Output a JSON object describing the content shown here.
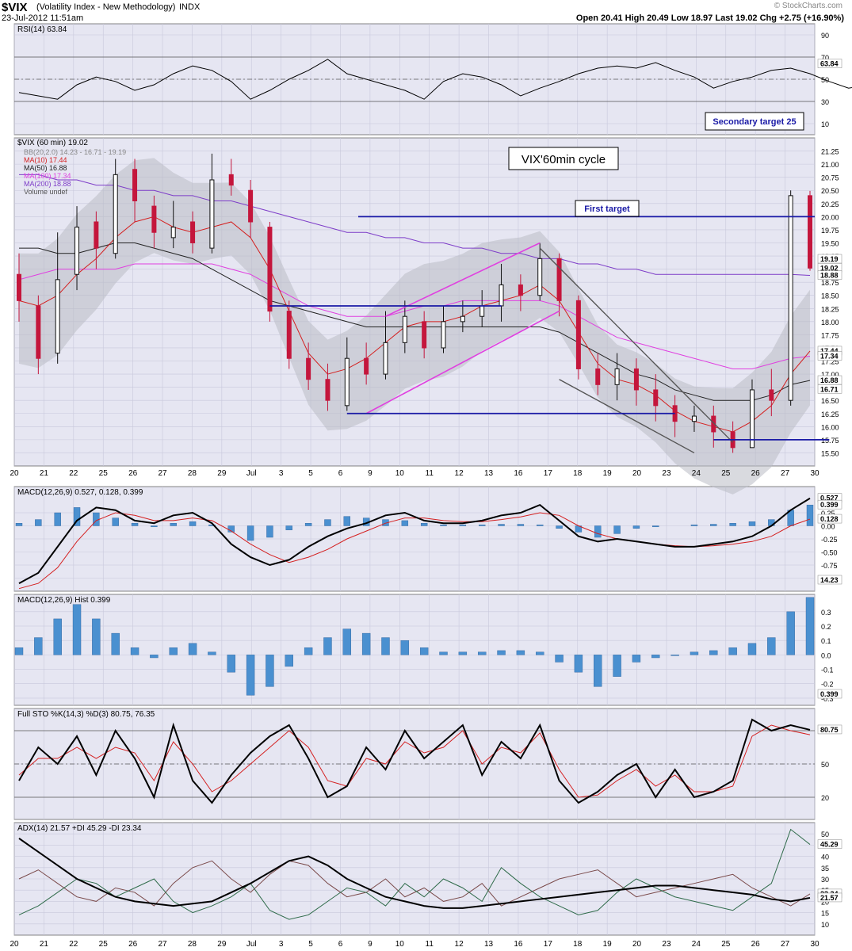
{
  "header": {
    "symbol": "$VIX",
    "name": "(Volatility Index - New Methodology)",
    "exchange": "INDX",
    "timestamp": "23-Jul-2012 11:51am",
    "quote": "Open 20.41  High 20.49  Low 18.97  Last 19.02  Chg +2.75 (+16.90%)",
    "watermark": "© StockCharts.com"
  },
  "chart_data": [
    {
      "type": "line",
      "title": "RSI(14) 63.84",
      "value": 63.84,
      "ylim": [
        0,
        100
      ],
      "yticks": [
        "90",
        "70",
        "50",
        "30",
        "10"
      ],
      "annotations": [
        "Secondary target 25"
      ],
      "series": [
        {
          "name": "RSI(14)",
          "values": [
            38,
            35,
            32,
            45,
            52,
            48,
            40,
            45,
            55,
            62,
            58,
            48,
            32,
            40,
            50,
            58,
            68,
            55,
            50,
            45,
            40,
            32,
            48,
            55,
            52,
            45,
            35,
            42,
            48,
            55,
            60,
            62,
            60,
            65,
            58,
            52,
            42,
            48,
            52,
            58,
            60,
            55,
            48,
            42,
            45,
            50,
            60,
            50,
            65,
            63.84
          ]
        }
      ]
    },
    {
      "type": "candlestick",
      "title": "$VIX (60 min) 19.02",
      "annotations": [
        "VIX'60min cycle",
        "First target"
      ],
      "legend": [
        "BB(20,2.0) 14.23 - 16.71 - 19.19",
        "MA(10) 17.44",
        "MA(50) 16.88",
        "MA(100) 17.34",
        "MA(200) 18.88",
        "Volume undef"
      ],
      "ylim": [
        15.25,
        21.5
      ],
      "yticks": [
        "21.25",
        "21.00",
        "20.75",
        "20.50",
        "20.25",
        "20.00",
        "19.75",
        "19.50",
        "19.25",
        "19.00",
        "18.75",
        "18.50",
        "18.25",
        "18.00",
        "17.75",
        "17.50",
        "17.25",
        "17.00",
        "16.75",
        "16.50",
        "16.25",
        "16.00",
        "15.75",
        "15.50"
      ],
      "xticks": [
        "20",
        "21",
        "22",
        "25",
        "26",
        "27",
        "28",
        "29",
        "Jul",
        "3",
        "5",
        "6",
        "9",
        "10",
        "11",
        "12",
        "13",
        "16",
        "17",
        "18",
        "19",
        "20",
        "23",
        "24",
        "25",
        "26",
        "27",
        "30"
      ],
      "price_labels": [
        "19.19",
        "19.02",
        "18.88",
        "17.44",
        "17.34",
        "16.88",
        "16.71"
      ],
      "candles": [
        {
          "o": 18.9,
          "c": 18.4,
          "h": 19.3,
          "l": 18.0
        },
        {
          "o": 18.3,
          "c": 17.3,
          "h": 18.5,
          "l": 17.0
        },
        {
          "o": 17.4,
          "c": 18.8,
          "h": 19.7,
          "l": 17.2
        },
        {
          "o": 18.9,
          "c": 19.8,
          "h": 20.2,
          "l": 18.6
        },
        {
          "o": 19.9,
          "c": 19.4,
          "h": 20.1,
          "l": 19.0
        },
        {
          "o": 19.3,
          "c": 20.8,
          "h": 21.1,
          "l": 19.2
        },
        {
          "o": 20.9,
          "c": 20.3,
          "h": 21.1,
          "l": 19.9
        },
        {
          "o": 20.2,
          "c": 19.7,
          "h": 20.4,
          "l": 19.4
        },
        {
          "o": 19.6,
          "c": 19.8,
          "h": 20.3,
          "l": 19.4
        },
        {
          "o": 19.9,
          "c": 19.5,
          "h": 20.1,
          "l": 19.3
        },
        {
          "o": 19.4,
          "c": 20.7,
          "h": 21.2,
          "l": 19.3
        },
        {
          "o": 20.8,
          "c": 20.6,
          "h": 21.1,
          "l": 20.4
        },
        {
          "o": 20.5,
          "c": 19.9,
          "h": 20.7,
          "l": 19.6
        },
        {
          "o": 19.8,
          "c": 18.2,
          "h": 19.9,
          "l": 18.0
        },
        {
          "o": 18.2,
          "c": 17.3,
          "h": 18.4,
          "l": 17.1
        },
        {
          "o": 17.3,
          "c": 16.9,
          "h": 17.6,
          "l": 16.7
        },
        {
          "o": 16.9,
          "c": 16.5,
          "h": 17.2,
          "l": 16.3
        },
        {
          "o": 16.4,
          "c": 17.3,
          "h": 17.7,
          "l": 16.3
        },
        {
          "o": 17.3,
          "c": 17.0,
          "h": 17.6,
          "l": 16.8
        },
        {
          "o": 17.0,
          "c": 17.6,
          "h": 18.2,
          "l": 16.9
        },
        {
          "o": 17.6,
          "c": 18.1,
          "h": 18.4,
          "l": 17.4
        },
        {
          "o": 18.0,
          "c": 17.5,
          "h": 18.2,
          "l": 17.3
        },
        {
          "o": 17.5,
          "c": 18.0,
          "h": 18.3,
          "l": 17.4
        },
        {
          "o": 18.0,
          "c": 18.1,
          "h": 18.4,
          "l": 17.8
        },
        {
          "o": 18.1,
          "c": 18.3,
          "h": 18.6,
          "l": 17.9
        },
        {
          "o": 18.3,
          "c": 18.7,
          "h": 19.1,
          "l": 18.0
        },
        {
          "o": 18.7,
          "c": 18.5,
          "h": 18.9,
          "l": 18.2
        },
        {
          "o": 18.5,
          "c": 19.2,
          "h": 19.5,
          "l": 18.4
        },
        {
          "o": 19.2,
          "c": 18.4,
          "h": 19.3,
          "l": 18.1
        },
        {
          "o": 18.4,
          "c": 17.1,
          "h": 18.5,
          "l": 16.9
        },
        {
          "o": 17.1,
          "c": 16.8,
          "h": 17.4,
          "l": 16.6
        },
        {
          "o": 16.8,
          "c": 17.1,
          "h": 17.4,
          "l": 16.5
        },
        {
          "o": 17.1,
          "c": 16.7,
          "h": 17.3,
          "l": 16.4
        },
        {
          "o": 16.7,
          "c": 16.4,
          "h": 17.0,
          "l": 16.1
        },
        {
          "o": 16.4,
          "c": 16.1,
          "h": 16.6,
          "l": 15.8
        },
        {
          "o": 16.1,
          "c": 16.2,
          "h": 16.4,
          "l": 15.9
        },
        {
          "o": 16.2,
          "c": 15.9,
          "h": 16.4,
          "l": 15.6
        },
        {
          "o": 15.9,
          "c": 15.6,
          "h": 16.1,
          "l": 15.5
        },
        {
          "o": 15.6,
          "c": 16.7,
          "h": 16.9,
          "l": 15.6
        },
        {
          "o": 16.7,
          "c": 16.5,
          "h": 17.1,
          "l": 16.2
        },
        {
          "o": 16.5,
          "c": 20.4,
          "h": 20.5,
          "l": 16.4
        },
        {
          "o": 20.4,
          "c": 19.02,
          "h": 20.49,
          "l": 18.97
        }
      ],
      "lines": [
        {
          "name": "MA(10)",
          "values": [
            18.4,
            18.3,
            18.5,
            18.9,
            19.2,
            19.6,
            19.9,
            20.0,
            19.8,
            19.7,
            19.8,
            19.9,
            19.6,
            19.0,
            18.2,
            17.4,
            17.0,
            17.1,
            17.3,
            17.6,
            17.9,
            18.0,
            18.0,
            18.1,
            18.3,
            18.4,
            18.5,
            18.7,
            18.4,
            17.8,
            17.2,
            16.9,
            16.8,
            16.6,
            16.3,
            16.1,
            16.0,
            15.9,
            16.1,
            16.4,
            17.0,
            17.44
          ]
        },
        {
          "name": "MA(50)",
          "values": [
            19.4,
            19.4,
            19.3,
            19.3,
            19.4,
            19.5,
            19.5,
            19.4,
            19.3,
            19.2,
            19.0,
            18.8,
            18.6,
            18.4,
            18.3,
            18.2,
            18.1,
            18.0,
            17.9,
            17.9,
            17.9,
            17.9,
            17.9,
            17.9,
            17.9,
            17.9,
            17.9,
            17.9,
            17.8,
            17.6,
            17.4,
            17.2,
            17.0,
            16.9,
            16.7,
            16.6,
            16.5,
            16.5,
            16.5,
            16.6,
            16.8,
            16.88
          ]
        },
        {
          "name": "MA(100)",
          "values": [
            18.8,
            18.9,
            19.0,
            19.0,
            19.0,
            19.0,
            19.1,
            19.1,
            19.1,
            19.1,
            19.1,
            19.0,
            18.9,
            18.7,
            18.5,
            18.3,
            18.2,
            18.1,
            18.1,
            18.1,
            18.2,
            18.3,
            18.3,
            18.4,
            18.4,
            18.4,
            18.4,
            18.4,
            18.3,
            18.1,
            17.9,
            17.7,
            17.6,
            17.5,
            17.4,
            17.3,
            17.2,
            17.1,
            17.1,
            17.2,
            17.3,
            17.34
          ]
        },
        {
          "name": "MA(200)",
          "values": [
            20.8,
            20.8,
            20.7,
            20.7,
            20.6,
            20.6,
            20.5,
            20.5,
            20.4,
            20.4,
            20.3,
            20.3,
            20.2,
            20.1,
            20.0,
            19.9,
            19.8,
            19.7,
            19.7,
            19.6,
            19.6,
            19.5,
            19.5,
            19.4,
            19.4,
            19.3,
            19.3,
            19.2,
            19.2,
            19.1,
            19.1,
            19.0,
            19.0,
            18.9,
            18.9,
            18.9,
            18.9,
            18.9,
            18.9,
            18.9,
            18.9,
            18.88
          ]
        }
      ]
    },
    {
      "type": "line",
      "title": "MACD(12,26,9) 0.527, 0.128, 0.399",
      "ylim": [
        -1.25,
        0.75
      ],
      "yticks": [
        "0.25",
        "0.00",
        "-0.25",
        "-0.50",
        "-0.75",
        "-1.00"
      ],
      "price_labels": [
        "0.527",
        "0.399",
        "0.128",
        "14.23"
      ],
      "series": [
        {
          "name": "MACD",
          "values": [
            -1.1,
            -0.9,
            -0.4,
            0.1,
            0.35,
            0.3,
            0.1,
            0.05,
            0.2,
            0.25,
            0.05,
            -0.35,
            -0.6,
            -0.75,
            -0.65,
            -0.4,
            -0.2,
            -0.05,
            0.05,
            0.2,
            0.25,
            0.1,
            0.05,
            0.05,
            0.1,
            0.2,
            0.25,
            0.4,
            0.1,
            -0.2,
            -0.3,
            -0.25,
            -0.3,
            -0.35,
            -0.4,
            -0.4,
            -0.35,
            -0.3,
            -0.2,
            0.0,
            0.3,
            0.527
          ]
        },
        {
          "name": "Signal",
          "values": [
            -1.2,
            -1.1,
            -0.8,
            -0.3,
            0.1,
            0.25,
            0.2,
            0.1,
            0.1,
            0.15,
            0.1,
            -0.1,
            -0.35,
            -0.55,
            -0.7,
            -0.6,
            -0.45,
            -0.25,
            -0.1,
            0.05,
            0.15,
            0.15,
            0.1,
            0.08,
            0.08,
            0.12,
            0.17,
            0.25,
            0.2,
            0.0,
            -0.15,
            -0.25,
            -0.3,
            -0.35,
            -0.38,
            -0.4,
            -0.38,
            -0.35,
            -0.3,
            -0.2,
            0.0,
            0.128
          ]
        }
      ]
    },
    {
      "type": "bar",
      "title": "MACD(12,26,9) Hist 0.399",
      "ylim": [
        -0.35,
        0.42
      ],
      "yticks": [
        "0.3",
        "0.2",
        "0.1",
        "0.0",
        "-0.1",
        "-0.2",
        "-0.3"
      ],
      "price_labels": [
        "0.399"
      ],
      "values": [
        0.05,
        0.12,
        0.25,
        0.35,
        0.25,
        0.15,
        0.05,
        -0.02,
        0.05,
        0.08,
        0.02,
        -0.12,
        -0.28,
        -0.22,
        -0.08,
        0.05,
        0.12,
        0.18,
        0.15,
        0.12,
        0.1,
        0.05,
        0.02,
        0.02,
        0.02,
        0.03,
        0.03,
        0.02,
        -0.05,
        -0.12,
        -0.22,
        -0.15,
        -0.05,
        -0.02,
        0.0,
        0.02,
        0.03,
        0.05,
        0.08,
        0.12,
        0.3,
        0.399
      ]
    },
    {
      "type": "line",
      "title": "Full STO %K(14,3) %D(3) 80.75, 76.35",
      "ylim": [
        0,
        100
      ],
      "yticks": [
        "50",
        "20"
      ],
      "price_labels": [
        "80.75"
      ],
      "series": [
        {
          "name": "%K",
          "values": [
            35,
            65,
            50,
            75,
            40,
            80,
            55,
            20,
            85,
            35,
            15,
            40,
            60,
            75,
            85,
            55,
            20,
            30,
            65,
            45,
            80,
            55,
            70,
            85,
            40,
            70,
            55,
            85,
            35,
            15,
            25,
            40,
            50,
            20,
            45,
            20,
            25,
            35,
            90,
            80,
            85,
            80.75
          ]
        },
        {
          "name": "%D",
          "values": [
            40,
            55,
            55,
            65,
            55,
            65,
            60,
            35,
            70,
            50,
            25,
            35,
            50,
            65,
            80,
            65,
            35,
            30,
            55,
            50,
            70,
            60,
            65,
            80,
            50,
            65,
            60,
            78,
            45,
            20,
            22,
            35,
            45,
            30,
            40,
            25,
            25,
            30,
            75,
            85,
            80,
            76.35
          ]
        }
      ]
    },
    {
      "type": "line",
      "title": "ADX(14) 21.57 +DI 45.29 -DI 23.34",
      "ylim": [
        5,
        55
      ],
      "yticks": [
        "50",
        "45",
        "40",
        "35",
        "30",
        "25",
        "20",
        "15",
        "10"
      ],
      "price_labels": [
        "45.29",
        "23.34",
        "21.57"
      ],
      "xticks": [
        "20",
        "21",
        "22",
        "25",
        "26",
        "27",
        "28",
        "29",
        "Jul",
        "3",
        "5",
        "6",
        "9",
        "10",
        "11",
        "12",
        "13",
        "16",
        "17",
        "18",
        "19",
        "20",
        "23",
        "24",
        "25",
        "26",
        "27",
        "30"
      ],
      "series": [
        {
          "name": "ADX(14)",
          "values": [
            48,
            42,
            36,
            30,
            26,
            22,
            20,
            19,
            18,
            19,
            20,
            24,
            28,
            33,
            38,
            40,
            36,
            30,
            26,
            22,
            20,
            18,
            17,
            17,
            18,
            19,
            20,
            21,
            22,
            23,
            24,
            25,
            26,
            27,
            27,
            26,
            25,
            24,
            23,
            21,
            20,
            21.57
          ]
        },
        {
          "name": "+DI",
          "values": [
            14,
            18,
            24,
            30,
            28,
            22,
            26,
            30,
            20,
            15,
            18,
            22,
            28,
            16,
            12,
            14,
            20,
            26,
            24,
            18,
            28,
            22,
            30,
            26,
            20,
            35,
            28,
            22,
            18,
            14,
            16,
            24,
            30,
            26,
            22,
            20,
            18,
            16,
            22,
            28,
            52,
            45.29
          ]
        },
        {
          "name": "-DI",
          "values": [
            30,
            34,
            28,
            22,
            20,
            26,
            24,
            18,
            28,
            35,
            38,
            30,
            24,
            32,
            38,
            36,
            28,
            22,
            24,
            30,
            22,
            26,
            20,
            22,
            28,
            18,
            22,
            26,
            30,
            32,
            34,
            28,
            22,
            24,
            26,
            28,
            30,
            32,
            26,
            22,
            18,
            23.34
          ]
        }
      ]
    }
  ]
}
